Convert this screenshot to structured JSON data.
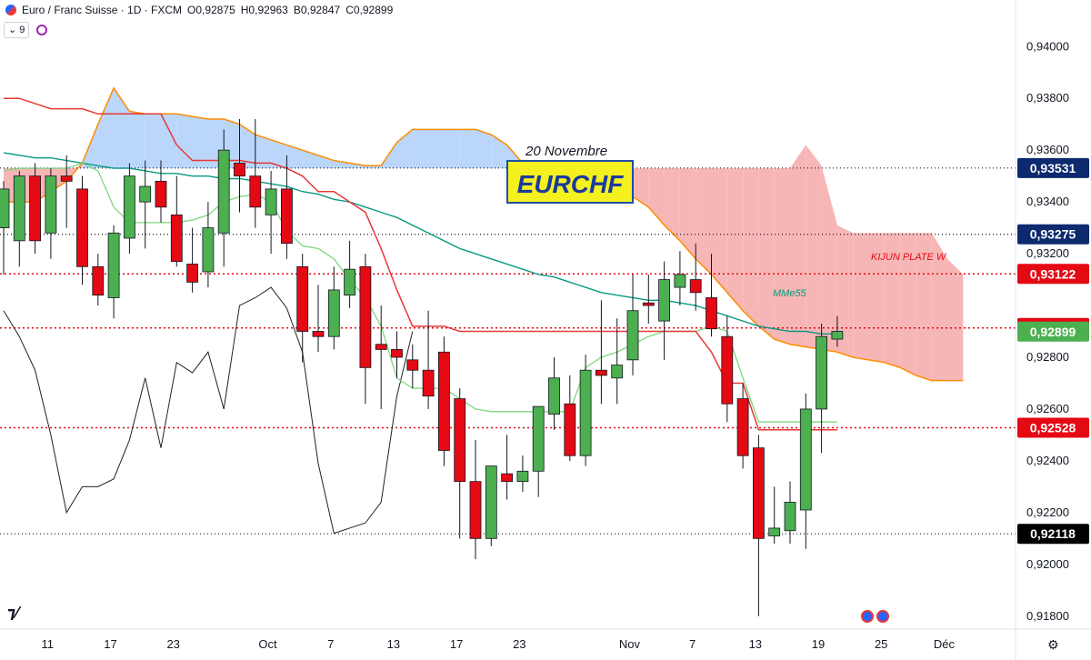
{
  "header": {
    "symbol_name": "Euro / Franc Suisse · 1D · FXCM",
    "open": "O0,92875",
    "high": "H0,92963",
    "low": "B0,92847",
    "close": "C0,92899",
    "indicator_chip": "9"
  },
  "annotations": {
    "date_note": "20 Novembre",
    "pair_label": "EURCHF",
    "kijun_note": "KIJUN PLATE W",
    "ema_note": "MMe55"
  },
  "colors": {
    "up": "#4caf50",
    "down": "#e50914",
    "cloud_up": "#bbd6fb",
    "cloud_down": "#f7b6b6",
    "kijun": "#e53935",
    "tenkan": "#7fd67f",
    "ema": "#089981",
    "chikou": "#222222",
    "senkou": "#ff8c00"
  },
  "chart_data": {
    "type": "candlestick",
    "title": "Euro / Franc Suisse · 1D · FXCM",
    "ylim": [
      0.9175,
      0.9418
    ],
    "y_ticks": [
      "0,94000",
      "0,93800",
      "0,93600",
      "0,93400",
      "0,93200",
      "0,92800",
      "0,92600",
      "0,92400",
      "0,92200",
      "0,92000",
      "0,91800"
    ],
    "x_ticks": [
      {
        "label": "11",
        "i": 1
      },
      {
        "label": "17",
        "i": 5
      },
      {
        "label": "23",
        "i": 9
      },
      {
        "label": "Oct",
        "i": 15
      },
      {
        "label": "7",
        "i": 19
      },
      {
        "label": "13",
        "i": 23
      },
      {
        "label": "17",
        "i": 27
      },
      {
        "label": "23",
        "i": 31
      },
      {
        "label": "Nov",
        "i": 38
      },
      {
        "label": "7",
        "i": 42
      },
      {
        "label": "13",
        "i": 46
      },
      {
        "label": "19",
        "i": 50
      },
      {
        "label": "25",
        "i": 54
      },
      {
        "label": "Déc",
        "i": 58
      }
    ],
    "candles": [
      {
        "o": 0.933,
        "h": 0.9348,
        "l": 0.9312,
        "c": 0.9345
      },
      {
        "o": 0.9325,
        "h": 0.9352,
        "l": 0.9315,
        "c": 0.935
      },
      {
        "o": 0.935,
        "h": 0.9355,
        "l": 0.932,
        "c": 0.9325
      },
      {
        "o": 0.9328,
        "h": 0.9353,
        "l": 0.9318,
        "c": 0.935
      },
      {
        "o": 0.935,
        "h": 0.9358,
        "l": 0.933,
        "c": 0.9348
      },
      {
        "o": 0.9345,
        "h": 0.935,
        "l": 0.9308,
        "c": 0.9315
      },
      {
        "o": 0.9315,
        "h": 0.932,
        "l": 0.93,
        "c": 0.9304
      },
      {
        "o": 0.9303,
        "h": 0.9331,
        "l": 0.9295,
        "c": 0.9328
      },
      {
        "o": 0.9326,
        "h": 0.9355,
        "l": 0.932,
        "c": 0.935
      },
      {
        "o": 0.934,
        "h": 0.9356,
        "l": 0.9322,
        "c": 0.9346
      },
      {
        "o": 0.9348,
        "h": 0.9356,
        "l": 0.9332,
        "c": 0.9338
      },
      {
        "o": 0.9335,
        "h": 0.935,
        "l": 0.9315,
        "c": 0.9317
      },
      {
        "o": 0.9316,
        "h": 0.933,
        "l": 0.9305,
        "c": 0.9309
      },
      {
        "o": 0.9313,
        "h": 0.934,
        "l": 0.9307,
        "c": 0.933
      },
      {
        "o": 0.9328,
        "h": 0.9368,
        "l": 0.9315,
        "c": 0.936
      },
      {
        "o": 0.9355,
        "h": 0.9372,
        "l": 0.9336,
        "c": 0.935
      },
      {
        "o": 0.935,
        "h": 0.9372,
        "l": 0.933,
        "c": 0.9338
      },
      {
        "o": 0.9335,
        "h": 0.9352,
        "l": 0.932,
        "c": 0.9345
      },
      {
        "o": 0.9345,
        "h": 0.9358,
        "l": 0.9318,
        "c": 0.9324
      },
      {
        "o": 0.9315,
        "h": 0.932,
        "l": 0.9278,
        "c": 0.929
      },
      {
        "o": 0.929,
        "h": 0.9308,
        "l": 0.9282,
        "c": 0.9288
      },
      {
        "o": 0.9288,
        "h": 0.9315,
        "l": 0.9283,
        "c": 0.9306
      },
      {
        "o": 0.9304,
        "h": 0.9325,
        "l": 0.9299,
        "c": 0.9314
      },
      {
        "o": 0.9315,
        "h": 0.932,
        "l": 0.9262,
        "c": 0.9276
      },
      {
        "o": 0.9285,
        "h": 0.93,
        "l": 0.926,
        "c": 0.9283
      },
      {
        "o": 0.9283,
        "h": 0.929,
        "l": 0.9272,
        "c": 0.928
      },
      {
        "o": 0.9279,
        "h": 0.9285,
        "l": 0.9268,
        "c": 0.9275
      },
      {
        "o": 0.9275,
        "h": 0.9298,
        "l": 0.926,
        "c": 0.9265
      },
      {
        "o": 0.9282,
        "h": 0.9288,
        "l": 0.9238,
        "c": 0.9244
      },
      {
        "o": 0.9264,
        "h": 0.9268,
        "l": 0.921,
        "c": 0.9232
      },
      {
        "o": 0.9232,
        "h": 0.9248,
        "l": 0.9202,
        "c": 0.921
      },
      {
        "o": 0.921,
        "h": 0.9238,
        "l": 0.9207,
        "c": 0.9238
      },
      {
        "o": 0.9235,
        "h": 0.925,
        "l": 0.9225,
        "c": 0.9232
      },
      {
        "o": 0.9232,
        "h": 0.9242,
        "l": 0.9228,
        "c": 0.9236
      },
      {
        "o": 0.9236,
        "h": 0.926,
        "l": 0.9226,
        "c": 0.9261
      },
      {
        "o": 0.9258,
        "h": 0.928,
        "l": 0.9252,
        "c": 0.9272
      },
      {
        "o": 0.9262,
        "h": 0.9273,
        "l": 0.924,
        "c": 0.9242
      },
      {
        "o": 0.9242,
        "h": 0.9281,
        "l": 0.9238,
        "c": 0.9275
      },
      {
        "o": 0.9275,
        "h": 0.9302,
        "l": 0.9262,
        "c": 0.9273
      },
      {
        "o": 0.9272,
        "h": 0.9295,
        "l": 0.9262,
        "c": 0.9277
      },
      {
        "o": 0.9279,
        "h": 0.9312,
        "l": 0.9273,
        "c": 0.9298
      },
      {
        "o": 0.9301,
        "h": 0.9312,
        "l": 0.9293,
        "c": 0.93
      },
      {
        "o": 0.9294,
        "h": 0.9317,
        "l": 0.9279,
        "c": 0.931
      },
      {
        "o": 0.9307,
        "h": 0.9321,
        "l": 0.93,
        "c": 0.9312
      },
      {
        "o": 0.931,
        "h": 0.9324,
        "l": 0.9298,
        "c": 0.9305
      },
      {
        "o": 0.9303,
        "h": 0.932,
        "l": 0.9288,
        "c": 0.9291
      },
      {
        "o": 0.9288,
        "h": 0.9296,
        "l": 0.9255,
        "c": 0.9262
      },
      {
        "o": 0.9264,
        "h": 0.927,
        "l": 0.9237,
        "c": 0.9242
      },
      {
        "o": 0.9245,
        "h": 0.925,
        "l": 0.918,
        "c": 0.921
      },
      {
        "o": 0.9211,
        "h": 0.923,
        "l": 0.9208,
        "c": 0.9214
      },
      {
        "o": 0.9213,
        "h": 0.9232,
        "l": 0.9208,
        "c": 0.9224
      },
      {
        "o": 0.9221,
        "h": 0.9266,
        "l": 0.9206,
        "c": 0.926
      },
      {
        "o": 0.926,
        "h": 0.9293,
        "l": 0.9243,
        "c": 0.9288
      },
      {
        "o": 0.9287,
        "h": 0.9296,
        "l": 0.9284,
        "c": 0.929
      }
    ],
    "kijun": [
      0.938,
      0.938,
      0.9378,
      0.9376,
      0.9376,
      0.9376,
      0.9374,
      0.9374,
      0.9374,
      0.9374,
      0.9374,
      0.9362,
      0.9356,
      0.9356,
      0.9356,
      0.9356,
      0.9355,
      0.9355,
      0.9353,
      0.935,
      0.9344,
      0.9344,
      0.934,
      0.9336,
      0.9322,
      0.9306,
      0.9292,
      0.9292,
      0.9292,
      0.929,
      0.929,
      0.929,
      0.929,
      0.929,
      0.929,
      0.929,
      0.929,
      0.929,
      0.929,
      0.929,
      0.929,
      0.929,
      0.929,
      0.929,
      0.929,
      0.9282,
      0.927,
      0.927,
      0.9252,
      0.9252,
      0.9252,
      0.9252,
      0.9252,
      0.9252
    ],
    "tenkan": [
      0.9352,
      0.9353,
      0.9353,
      0.9353,
      0.9353,
      0.9355,
      0.9352,
      0.9338,
      0.9332,
      0.9332,
      0.9332,
      0.9332,
      0.9333,
      0.9335,
      0.934,
      0.9342,
      0.9343,
      0.934,
      0.9329,
      0.9323,
      0.9322,
      0.9318,
      0.931,
      0.9303,
      0.9292,
      0.9272,
      0.9268,
      0.9268,
      0.9268,
      0.9264,
      0.926,
      0.9259,
      0.9259,
      0.9259,
      0.9259,
      0.9259,
      0.9259,
      0.9276,
      0.928,
      0.9282,
      0.9285,
      0.9288,
      0.929,
      0.929,
      0.929,
      0.9292,
      0.929,
      0.9272,
      0.9255,
      0.9255,
      0.9255,
      0.9255,
      0.9255,
      0.9255
    ],
    "ema55": [
      0.9359,
      0.9358,
      0.9357,
      0.9357,
      0.9356,
      0.9355,
      0.9354,
      0.9353,
      0.9353,
      0.9352,
      0.9351,
      0.9351,
      0.935,
      0.935,
      0.9349,
      0.9349,
      0.9348,
      0.9347,
      0.9346,
      0.9344,
      0.9343,
      0.9341,
      0.934,
      0.9338,
      0.9336,
      0.9334,
      0.9331,
      0.9328,
      0.9325,
      0.9322,
      0.932,
      0.9318,
      0.9316,
      0.9314,
      0.9312,
      0.9311,
      0.9309,
      0.9307,
      0.9305,
      0.9304,
      0.9303,
      0.9302,
      0.9302,
      0.9301,
      0.93,
      0.9298,
      0.9296,
      0.9294,
      0.9292,
      0.9291,
      0.929,
      0.929,
      0.9289,
      0.9289
    ],
    "chikou": [
      0.9298,
      0.9288,
      0.9275,
      0.925,
      0.922,
      0.923,
      0.923,
      0.9233,
      0.9248,
      0.9272,
      0.9245,
      0.9278,
      0.9274,
      0.9282,
      0.926,
      0.93,
      0.9303,
      0.9307,
      0.9299,
      0.9282,
      0.9239,
      0.9212,
      0.9214,
      0.9216,
      0.9224,
      0.9265,
      0.929
    ],
    "senkou_a": [
      0.934,
      0.934,
      0.934,
      0.9344,
      0.9348,
      0.9355,
      0.937,
      0.9384,
      0.9375,
      0.9374,
      0.9374,
      0.9374,
      0.9373,
      0.9372,
      0.9372,
      0.937,
      0.9366,
      0.9364,
      0.9362,
      0.936,
      0.9358,
      0.9356,
      0.9355,
      0.9354,
      0.9354,
      0.9363,
      0.9368,
      0.9368,
      0.9368,
      0.9368,
      0.9368,
      0.9366,
      0.9362,
      0.9355,
      0.935,
      0.9346,
      0.9344,
      0.9344,
      0.9344,
      0.9344,
      0.9342,
      0.9338,
      0.9331,
      0.9325,
      0.9318,
      0.9312,
      0.9305,
      0.9298,
      0.9292,
      0.9287,
      0.9285,
      0.9284,
      0.9283,
      0.9282,
      0.928,
      0.9279,
      0.9278,
      0.9276,
      0.9273,
      0.9271,
      0.9271,
      0.9271
    ],
    "senkou_b": [
      0.9353,
      0.9353,
      0.9353,
      0.9353,
      0.9353,
      0.9353,
      0.9353,
      0.9353,
      0.9353,
      0.9353,
      0.9353,
      0.9353,
      0.9353,
      0.9353,
      0.9353,
      0.9353,
      0.9353,
      0.9353,
      0.9353,
      0.9353,
      0.9353,
      0.9353,
      0.9353,
      0.9353,
      0.9353,
      0.9353,
      0.9353,
      0.9353,
      0.9353,
      0.9353,
      0.9353,
      0.9353,
      0.9353,
      0.9353,
      0.9353,
      0.9353,
      0.9353,
      0.9353,
      0.9353,
      0.9353,
      0.9353,
      0.9353,
      0.9353,
      0.9353,
      0.9353,
      0.9353,
      0.9353,
      0.9353,
      0.9353,
      0.9353,
      0.9353,
      0.9362,
      0.9354,
      0.9331,
      0.9328,
      0.9328,
      0.9328,
      0.9328,
      0.9328,
      0.9328,
      0.9318,
      0.9312
    ],
    "levels": [
      {
        "value": 0.93531,
        "label": "0,93531",
        "color": "#0d2a6e",
        "style": "dotted-black"
      },
      {
        "value": 0.93275,
        "label": "0,93275",
        "color": "#0d2a6e",
        "style": "dotted-black"
      },
      {
        "value": 0.93122,
        "label": "0,93122",
        "color": "#e50914",
        "style": "dotted-red"
      },
      {
        "value": 0.92913,
        "label": "0,92913",
        "color": "#e50914",
        "style": "dotted-red"
      },
      {
        "value": 0.92899,
        "label": "0,92899",
        "color": "#4caf50",
        "style": "none"
      },
      {
        "value": 0.92528,
        "label": "0,92528",
        "color": "#e50914",
        "style": "dotted-red"
      },
      {
        "value": 0.92118,
        "label": "0,92118",
        "color": "#000000",
        "style": "dotted-black"
      }
    ]
  }
}
